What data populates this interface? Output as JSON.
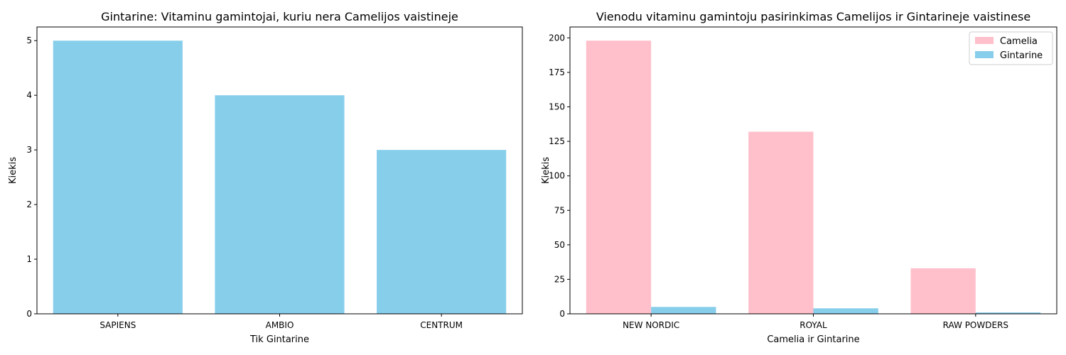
{
  "chart_data": [
    {
      "type": "bar",
      "title": "Gintarine: Vitaminu gamintojai, kuriu nera Camelijos vaistineje",
      "xlabel": "Tik Gintarine",
      "ylabel": "Kiekis",
      "categories": [
        "SAPIENS",
        "AMBIO",
        "CENTRUM"
      ],
      "series": [
        {
          "values": [
            5,
            4,
            3
          ],
          "color": "#87ceeb"
        }
      ],
      "ylim": [
        0,
        5.25
      ],
      "yticks": [
        0,
        1,
        2,
        3,
        4,
        5
      ],
      "grid": false,
      "legend": null
    },
    {
      "type": "bar",
      "title": "Vienodu vitaminu gamintoju pasirinkimas Camelijos ir Gintarineje vaistinese",
      "xlabel": "Camelia ir Gintarine",
      "ylabel": "Kiekis",
      "categories": [
        "NEW NORDIC",
        "ROYAL",
        "RAW POWDERS"
      ],
      "series": [
        {
          "name": "Camelia",
          "values": [
            198,
            132,
            33
          ],
          "color": "#ffc0cb"
        },
        {
          "name": "Gintarine",
          "values": [
            5,
            4,
            1
          ],
          "color": "#87ceeb"
        }
      ],
      "ylim": [
        0,
        207.9
      ],
      "yticks": [
        0,
        25,
        50,
        75,
        100,
        125,
        150,
        175,
        200
      ],
      "grid": false,
      "legend": "top-right"
    }
  ]
}
